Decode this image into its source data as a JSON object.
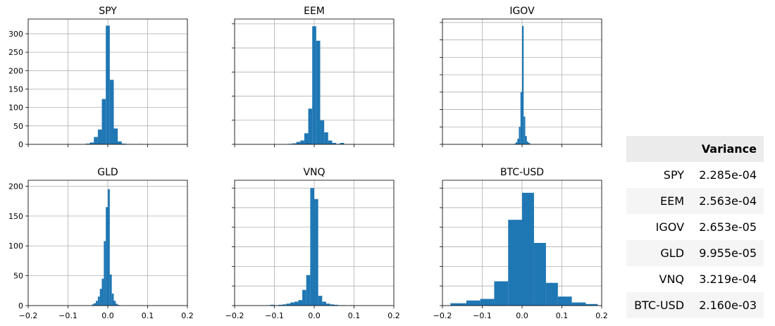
{
  "chart_data": [
    {
      "type": "bar",
      "title": "SPY",
      "xlim": [
        -0.2,
        0.2
      ],
      "ylim": [
        0,
        340
      ],
      "x_ticks": [
        "−0.2",
        "−0.1",
        "0.0",
        "0.1",
        "0.2"
      ],
      "y_ticks": [
        "0",
        "50",
        "100",
        "150",
        "200",
        "250",
        "300"
      ],
      "bin_edges": [
        -0.055,
        -0.045,
        -0.035,
        -0.025,
        -0.015,
        -0.005,
        0.005,
        0.015,
        0.025,
        0.035,
        0.045,
        0.055,
        0.065,
        0.075,
        0.085
      ],
      "counts": [
        2,
        5,
        20,
        40,
        123,
        322,
        175,
        43,
        8,
        2,
        1,
        1,
        0,
        1
      ]
    },
    {
      "type": "bar",
      "title": "EEM",
      "xlim": [
        -0.2,
        0.2
      ],
      "ylim": [
        0,
        260
      ],
      "x_ticks": [
        "−0.2",
        "−0.1",
        "0.0",
        "0.1",
        "0.2"
      ],
      "y_ticks": [
        "0",
        "50",
        "100",
        "150",
        "200",
        "250"
      ],
      "bin_edges": [
        -0.065,
        -0.055,
        -0.045,
        -0.035,
        -0.025,
        -0.015,
        -0.005,
        0.005,
        0.015,
        0.025,
        0.035,
        0.045,
        0.055,
        0.065,
        0.075
      ],
      "counts": [
        1,
        2,
        5,
        8,
        23,
        74,
        245,
        215,
        50,
        25,
        8,
        3,
        1,
        3
      ]
    },
    {
      "type": "bar",
      "title": "IGOV",
      "xlim": [
        -0.2,
        0.2
      ],
      "ylim": [
        0,
        180
      ],
      "x_ticks": [
        "−0.2",
        "−0.1",
        "0.0",
        "0.1",
        "0.2"
      ],
      "y_ticks": [
        "0",
        "25",
        "50",
        "75",
        "100",
        "125",
        "150",
        "175"
      ],
      "bin_edges": [
        -0.02,
        -0.016,
        -0.012,
        -0.008,
        -0.004,
        0.0,
        0.004,
        0.008,
        0.012,
        0.016,
        0.02
      ],
      "counts": [
        1,
        3,
        8,
        25,
        75,
        170,
        40,
        12,
        4,
        2
      ]
    },
    {
      "type": "bar",
      "title": "GLD",
      "xlim": [
        -0.2,
        0.2
      ],
      "ylim": [
        0,
        210
      ],
      "x_ticks": [
        "−0.2",
        "−0.1",
        "0.0",
        "0.1",
        "0.2"
      ],
      "y_ticks": [
        "0",
        "50",
        "100",
        "150",
        "200"
      ],
      "bin_edges": [
        -0.04,
        -0.035,
        -0.03,
        -0.025,
        -0.02,
        -0.015,
        -0.01,
        -0.005,
        0.0,
        0.005,
        0.01,
        0.015,
        0.02,
        0.025,
        0.03
      ],
      "counts": [
        2,
        4,
        8,
        15,
        28,
        45,
        108,
        165,
        195,
        52,
        20,
        8,
        3,
        1
      ]
    },
    {
      "type": "bar",
      "title": "VNQ",
      "xlim": [
        -0.2,
        0.2
      ],
      "ylim": [
        0,
        320
      ],
      "x_ticks": [
        "−0.2",
        "−0.1",
        "0.0",
        "0.1",
        "0.2"
      ],
      "y_ticks": [
        "0",
        "50",
        "100",
        "150",
        "200",
        "250",
        "300"
      ],
      "bin_edges": [
        -0.12,
        -0.11,
        -0.1,
        -0.09,
        -0.08,
        -0.07,
        -0.06,
        -0.05,
        -0.04,
        -0.03,
        -0.02,
        -0.01,
        0.0,
        0.01,
        0.02,
        0.03,
        0.04,
        0.05,
        0.06,
        0.07,
        0.08,
        0.09,
        0.1
      ],
      "counts": [
        1,
        2,
        1,
        2,
        3,
        5,
        8,
        10,
        14,
        40,
        78,
        300,
        272,
        25,
        10,
        5,
        3,
        2,
        1,
        1,
        0,
        1
      ]
    },
    {
      "type": "bar",
      "title": "BTC-USD",
      "xlim": [
        -0.2,
        0.2
      ],
      "ylim": [
        0,
        320
      ],
      "x_ticks": [
        "−0.2",
        "−0.1",
        "0.0",
        "0.1",
        "0.2"
      ],
      "y_ticks": [
        "0",
        "50",
        "100",
        "150",
        "200",
        "250",
        "300"
      ],
      "bin_edges": [
        -0.18,
        -0.14,
        -0.105,
        -0.07,
        -0.035,
        0.0,
        0.03,
        0.06,
        0.09,
        0.125,
        0.16,
        0.19
      ],
      "counts": [
        6,
        13,
        17,
        62,
        219,
        288,
        160,
        58,
        23,
        8,
        4
      ]
    }
  ],
  "variance_table": {
    "header": "Variance",
    "rows": [
      {
        "label": "SPY",
        "value": "2.285e-04"
      },
      {
        "label": "EEM",
        "value": "2.563e-04"
      },
      {
        "label": "IGOV",
        "value": "2.653e-05"
      },
      {
        "label": "GLD",
        "value": "9.955e-05"
      },
      {
        "label": "VNQ",
        "value": "3.219e-04"
      },
      {
        "label": "BTC-USD",
        "value": "2.160e-03"
      }
    ]
  }
}
